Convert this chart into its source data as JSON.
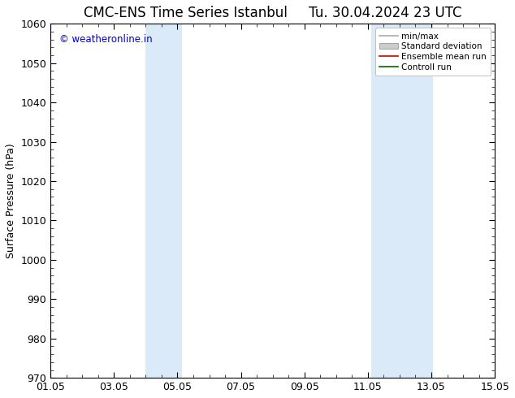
{
  "title": "CMC-ENS Time Series Istanbul",
  "title2": "Tu. 30.04.2024 23 UTC",
  "ylabel": "Surface Pressure (hPa)",
  "ylim": [
    970,
    1060
  ],
  "yticks": [
    970,
    980,
    990,
    1000,
    1010,
    1020,
    1030,
    1040,
    1050,
    1060
  ],
  "xlim": [
    0,
    14
  ],
  "xtick_labels": [
    "01.05",
    "03.05",
    "05.05",
    "07.05",
    "09.05",
    "11.05",
    "13.05",
    "15.05"
  ],
  "xtick_positions": [
    0,
    2,
    4,
    6,
    8,
    10,
    12,
    14
  ],
  "shaded_bands": [
    {
      "start": 3.0,
      "end": 4.15,
      "color": "#daeaf8"
    },
    {
      "start": 10.1,
      "end": 12.05,
      "color": "#daeaf8"
    }
  ],
  "watermark": "© weatheronline.in",
  "watermark_color": "#0000cc",
  "legend_entries": [
    {
      "label": "min/max",
      "color": "#aaaaaa",
      "style": "line"
    },
    {
      "label": "Standard deviation",
      "color": "#cccccc",
      "style": "box"
    },
    {
      "label": "Ensemble mean run",
      "color": "#cc0000",
      "style": "line"
    },
    {
      "label": "Controll run",
      "color": "#006600",
      "style": "line"
    }
  ],
  "background_color": "#ffffff",
  "plot_bg_color": "#ffffff",
  "border_color": "#000000",
  "title_fontsize": 12,
  "tick_fontsize": 9,
  "ylabel_fontsize": 9
}
